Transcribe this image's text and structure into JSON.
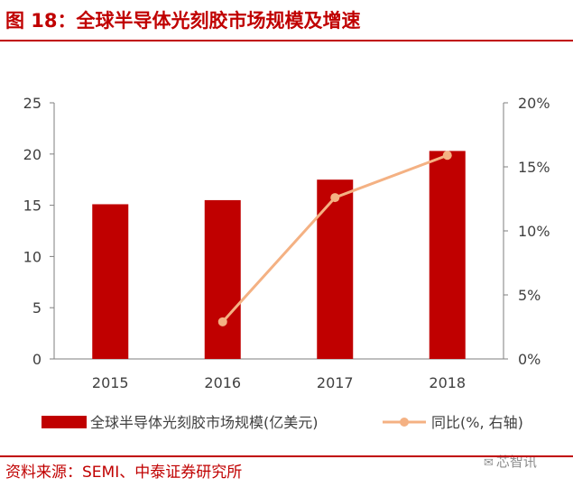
{
  "header": {
    "title": "图 18：全球半导体光刻胶市场规模及增速"
  },
  "footer": {
    "source": "资料来源：SEMI、中泰证券研究所",
    "watermark_icon": "wechat-icon",
    "watermark_text": "芯智讯"
  },
  "colors": {
    "bar": "#c00000",
    "line": "#f4b183",
    "axis": "#7f7f7f",
    "text": "#404040"
  },
  "chart_data": {
    "type": "bar",
    "title": "",
    "categories": [
      "2015",
      "2016",
      "2017",
      "2018"
    ],
    "series": [
      {
        "name": "全球半导体光刻胶市场规模(亿美元)",
        "type": "bar",
        "axis": "left",
        "values": [
          15.1,
          15.5,
          17.5,
          20.3
        ]
      },
      {
        "name": "同比(%, 右轴)",
        "type": "line",
        "axis": "right",
        "values": [
          null,
          2.9,
          12.6,
          15.9
        ]
      }
    ],
    "y_left": {
      "min": 0,
      "max": 25,
      "ticks": [
        "0",
        "5",
        "10",
        "15",
        "20",
        "25"
      ]
    },
    "y_right": {
      "min": 0,
      "max": 20,
      "ticks": [
        "0%",
        "5%",
        "10%",
        "15%",
        "20%"
      ]
    },
    "xlabel": "",
    "ylabel": "",
    "grid": false,
    "legend_position": "bottom"
  }
}
